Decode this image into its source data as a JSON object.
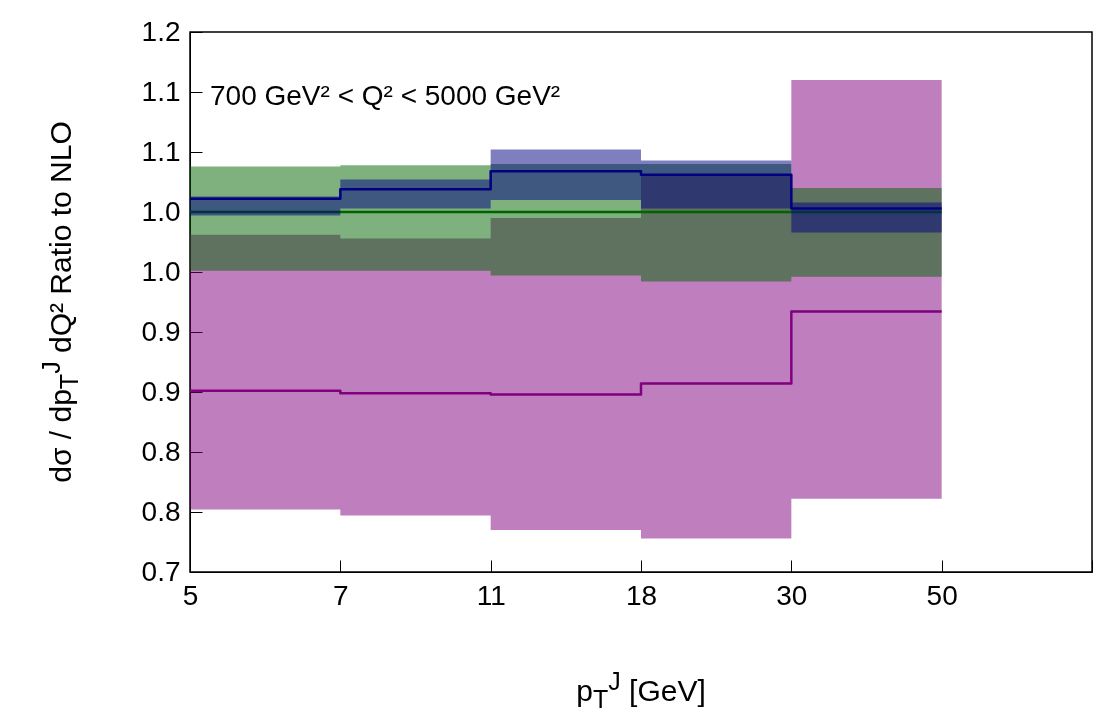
{
  "chart_data": {
    "type": "step",
    "xlabel": "p$_{T}$$^{J}$ [GeV]",
    "ylabel": "dσ / dp$_{T}$$^{J}$  dQ²  Ratio to NLO",
    "annotations": [
      "700 GeV² < Q² < 5000 GeV²"
    ],
    "categories": [
      "5",
      "7",
      "11",
      "18",
      "30",
      "50",
      null
    ],
    "ylim": [
      0.7,
      1.15
    ],
    "yticks": [
      0.7,
      {
        "value": 0.75,
        "label": "0.8"
      },
      0.8,
      {
        "value": 0.85,
        "label": "0.9"
      },
      0.9,
      {
        "value": 0.95,
        "label": "1.0"
      },
      {
        "value": 1.0,
        "label": "1.0"
      },
      {
        "value": 1.05,
        "label": "1.1"
      },
      1.1,
      {
        "value": 1.15,
        "label": "1.2"
      }
    ],
    "grid": false,
    "series": [
      {
        "color": "#800080",
        "values": [
          0.851,
          0.849,
          0.848,
          0.857,
          0.917,
          0.917,
          null
        ],
        "lower": [
          0.752,
          0.747,
          0.735,
          0.728,
          0.761,
          0.761,
          null
        ],
        "upper": [
          0.981,
          0.978,
          0.995,
          1.03,
          1.11,
          1.11,
          null
        ]
      },
      {
        "color": "#006400",
        "values": [
          1.0,
          1.0,
          1.0,
          1.0,
          1.0,
          1.0,
          null
        ],
        "lower": [
          0.951,
          0.951,
          0.947,
          0.942,
          0.946,
          0.946,
          null
        ],
        "upper": [
          1.038,
          1.039,
          1.04,
          1.04,
          1.02,
          1.02,
          null
        ]
      },
      {
        "color": "#000080",
        "values": [
          1.011,
          1.019,
          1.034,
          1.031,
          1.003,
          1.003,
          null
        ],
        "lower": [
          0.997,
          1.003,
          1.01,
          1.003,
          0.983,
          0.983,
          null
        ],
        "upper": [
          1.013,
          1.027,
          1.052,
          1.043,
          1.008,
          1.008,
          null
        ]
      }
    ]
  }
}
